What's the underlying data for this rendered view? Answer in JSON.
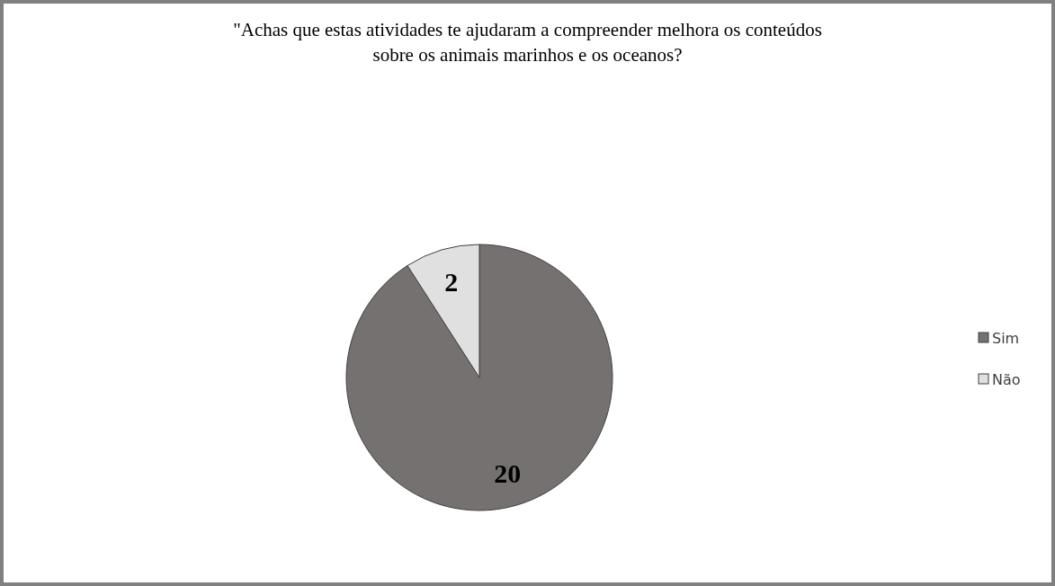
{
  "chart_data": {
    "type": "pie",
    "title": "\"Achas que estas atividades te ajudaram a compreender melhora os conteúdos sobre os animais marinhos e os oceanos?",
    "categories": [
      "Sim",
      "Não"
    ],
    "values": [
      20,
      2
    ],
    "colors": [
      "#767171",
      "#e0e0e0"
    ],
    "data_labels": true,
    "legend": "right"
  }
}
